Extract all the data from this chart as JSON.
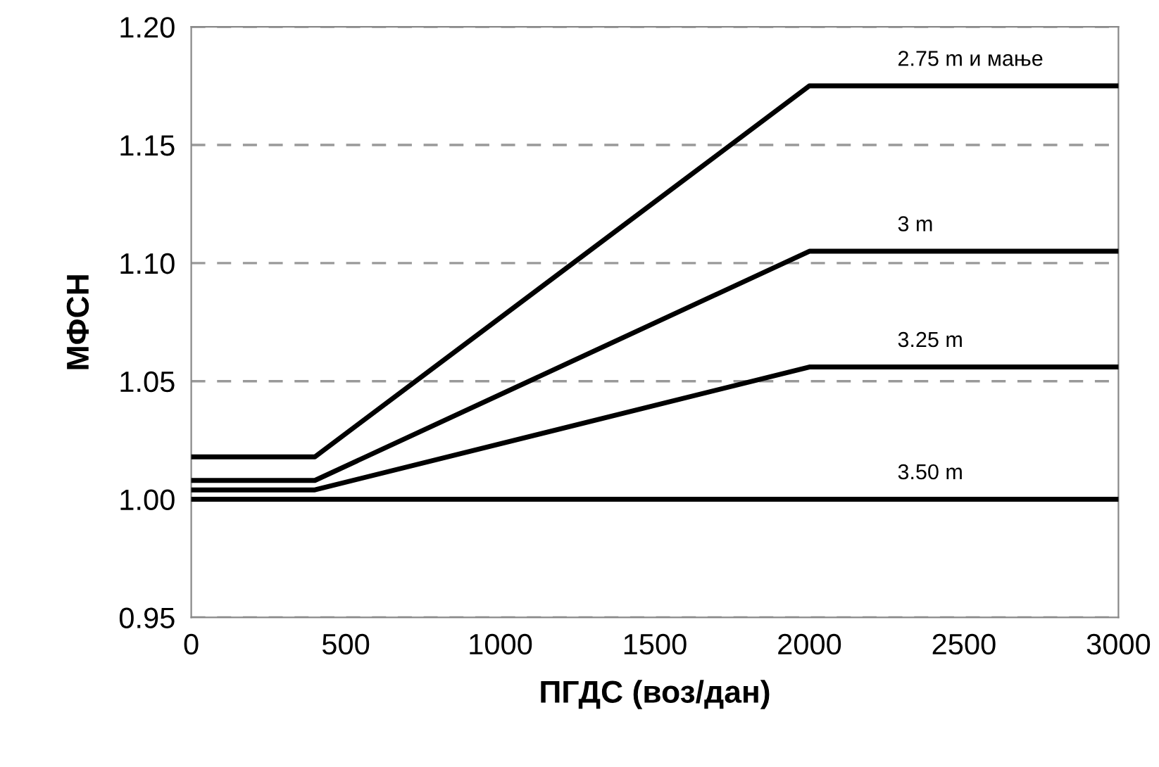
{
  "chart_data": {
    "type": "line",
    "xlabel": "ПГДС (воз/дан)",
    "ylabel": "МФСН",
    "x": [
      0,
      400,
      2000,
      3000
    ],
    "series": [
      {
        "name": "2.75 m и мање",
        "color": "#000000",
        "values": [
          1.018,
          1.018,
          1.175,
          1.175
        ]
      },
      {
        "name": "3 m",
        "color": "#000000",
        "values": [
          1.008,
          1.008,
          1.105,
          1.105
        ]
      },
      {
        "name": "3.25 m",
        "color": "#000000",
        "values": [
          1.004,
          1.004,
          1.056,
          1.056
        ]
      },
      {
        "name": "3.50 m",
        "color": "#000000",
        "values": [
          1.0,
          1.0,
          1.0,
          1.0
        ]
      }
    ],
    "xlim": [
      0,
      3000
    ],
    "xticks": [
      0,
      500,
      1000,
      1500,
      2000,
      2500,
      3000
    ],
    "ylim": [
      0.95,
      1.2
    ],
    "yticks": [
      {
        "value": 0.95,
        "label": "0.95"
      },
      {
        "value": 1.0,
        "label": "1.00"
      },
      {
        "value": 1.05,
        "label": "1.05"
      },
      {
        "value": 1.1,
        "label": "1.10"
      },
      {
        "value": 1.15,
        "label": "1.15"
      },
      {
        "value": 1.2,
        "label": "1.20"
      }
    ],
    "grid": "y",
    "legend": false,
    "marker": "none",
    "line_style": "solid"
  }
}
